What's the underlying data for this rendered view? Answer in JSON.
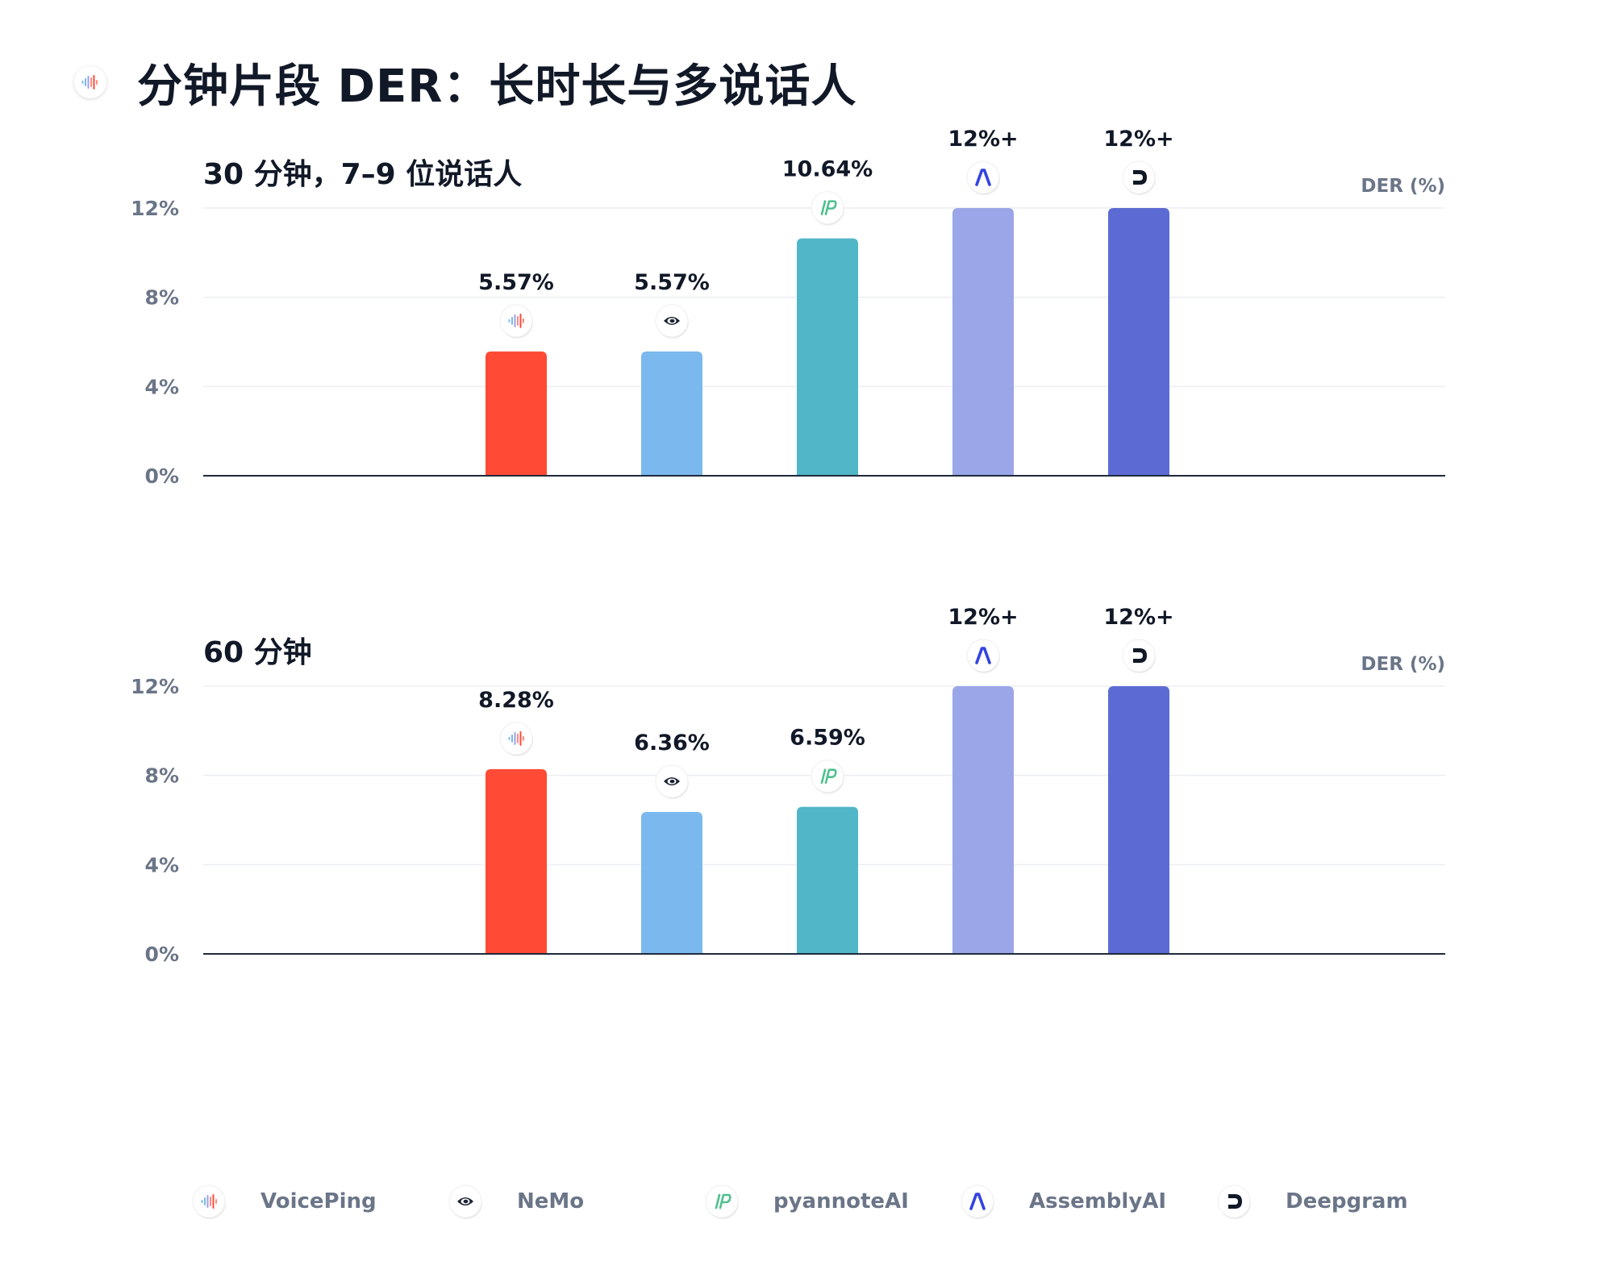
{
  "page_title": "分钟片段 DER：长时长与多说话人",
  "title_icon": "voiceping-waveform-icon",
  "chart_data": [
    {
      "type": "bar",
      "title": "30 分钟，7–9 位说话人",
      "ylabel": "DER (%)",
      "ylim": [
        0,
        12
      ],
      "yticks": [
        "0%",
        "4%",
        "8%",
        "12%"
      ],
      "categories": [
        "VoicePing",
        "NeMo",
        "pyannoteAI",
        "AssemblyAI",
        "Deepgram"
      ],
      "values": [
        5.57,
        5.57,
        10.64,
        12,
        12
      ],
      "value_labels": [
        "5.57%",
        "5.57%",
        "10.64%",
        "12%+",
        "12%+"
      ]
    },
    {
      "type": "bar",
      "title": "60 分钟",
      "ylabel": "DER (%)",
      "ylim": [
        0,
        12
      ],
      "yticks": [
        "0%",
        "4%",
        "8%",
        "12%"
      ],
      "categories": [
        "VoicePing",
        "NeMo",
        "pyannoteAI",
        "AssemblyAI",
        "Deepgram"
      ],
      "values": [
        8.28,
        6.36,
        6.59,
        12,
        12
      ],
      "value_labels": [
        "8.28%",
        "6.36%",
        "6.59%",
        "12%+",
        "12%+"
      ]
    }
  ],
  "series_colors": [
    "#ff4a36",
    "#7ab8ee",
    "#50b6c8",
    "#9ba6e8",
    "#5c6bd3"
  ],
  "legend": [
    {
      "label": "VoicePing",
      "icon": "voiceping-waveform-icon"
    },
    {
      "label": "NeMo",
      "icon": "nvidia-eye-icon"
    },
    {
      "label": "pyannoteAI",
      "icon": "pyannote-logo-icon"
    },
    {
      "label": "AssemblyAI",
      "icon": "assemblyai-logo-icon"
    },
    {
      "label": "Deepgram",
      "icon": "deepgram-logo-icon"
    }
  ]
}
